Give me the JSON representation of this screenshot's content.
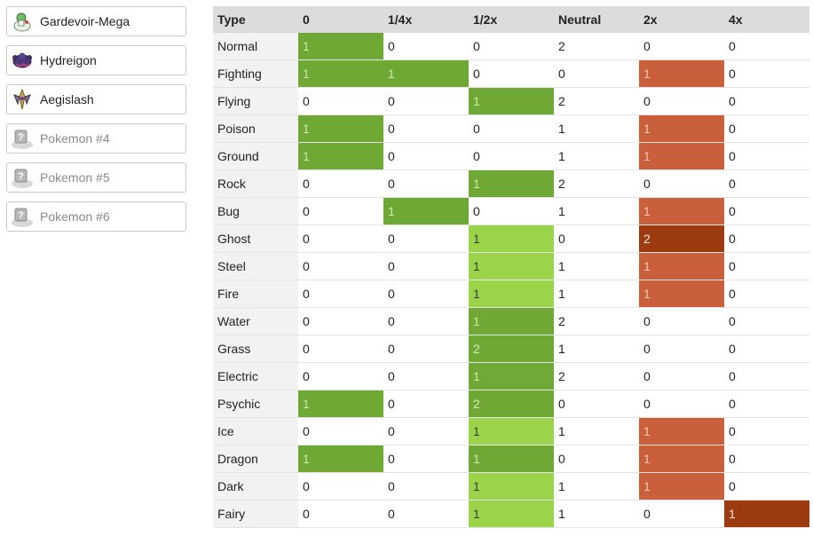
{
  "team": {
    "slots": [
      {
        "name": "Gardevoir-Mega",
        "sprite": "gardevoir-mega-sprite",
        "empty": false
      },
      {
        "name": "Hydreigon",
        "sprite": "hydreigon-sprite",
        "empty": false
      },
      {
        "name": "Aegislash",
        "sprite": "aegislash-sprite",
        "empty": false
      },
      {
        "name": "Pokemon #4",
        "sprite": "pokeball-placeholder-icon",
        "empty": true
      },
      {
        "name": "Pokemon #5",
        "sprite": "pokeball-placeholder-icon",
        "empty": true
      },
      {
        "name": "Pokemon #6",
        "sprite": "pokeball-placeholder-icon",
        "empty": true
      }
    ]
  },
  "table": {
    "headers": [
      "Type",
      "0",
      "1/4x",
      "1/2x",
      "Neutral",
      "2x",
      "4x"
    ],
    "rows": [
      {
        "type": "Normal",
        "cells": [
          "1",
          "0",
          "0",
          "2",
          "0",
          "0"
        ]
      },
      {
        "type": "Fighting",
        "cells": [
          "1",
          "1",
          "0",
          "0",
          "1",
          "0"
        ]
      },
      {
        "type": "Flying",
        "cells": [
          "0",
          "0",
          "1",
          "2",
          "0",
          "0"
        ]
      },
      {
        "type": "Poison",
        "cells": [
          "1",
          "0",
          "0",
          "1",
          "1",
          "0"
        ]
      },
      {
        "type": "Ground",
        "cells": [
          "1",
          "0",
          "0",
          "1",
          "1",
          "0"
        ]
      },
      {
        "type": "Rock",
        "cells": [
          "0",
          "0",
          "1",
          "2",
          "0",
          "0"
        ]
      },
      {
        "type": "Bug",
        "cells": [
          "0",
          "1",
          "0",
          "1",
          "1",
          "0"
        ]
      },
      {
        "type": "Ghost",
        "cells": [
          "0",
          "0",
          "1",
          "0",
          "2",
          "0"
        ]
      },
      {
        "type": "Steel",
        "cells": [
          "0",
          "0",
          "1",
          "1",
          "1",
          "0"
        ]
      },
      {
        "type": "Fire",
        "cells": [
          "0",
          "0",
          "1",
          "1",
          "1",
          "0"
        ]
      },
      {
        "type": "Water",
        "cells": [
          "0",
          "0",
          "1",
          "2",
          "0",
          "0"
        ]
      },
      {
        "type": "Grass",
        "cells": [
          "0",
          "0",
          "2",
          "1",
          "0",
          "0"
        ]
      },
      {
        "type": "Electric",
        "cells": [
          "0",
          "0",
          "1",
          "2",
          "0",
          "0"
        ]
      },
      {
        "type": "Psychic",
        "cells": [
          "1",
          "0",
          "2",
          "0",
          "0",
          "0"
        ]
      },
      {
        "type": "Ice",
        "cells": [
          "0",
          "0",
          "1",
          "1",
          "1",
          "0"
        ]
      },
      {
        "type": "Dragon",
        "cells": [
          "1",
          "0",
          "1",
          "0",
          "1",
          "0"
        ]
      },
      {
        "type": "Dark",
        "cells": [
          "0",
          "0",
          "1",
          "1",
          "1",
          "0"
        ]
      },
      {
        "type": "Fairy",
        "cells": [
          "0",
          "0",
          "1",
          "1",
          "0",
          "1"
        ]
      }
    ]
  },
  "colors": {
    "resist_strong": "#6fa835",
    "resist_light": "#9bd44a",
    "weak": "#c9603b",
    "weak_strong": "#9c3a10",
    "header_bg": "#dcdcdc",
    "type_col_bg": "#f2f2f2"
  },
  "cell_styles": [
    [
      "res-strong",
      "",
      "",
      "",
      "",
      ""
    ],
    [
      "res-strong",
      "res-strong",
      "",
      "",
      "weak",
      ""
    ],
    [
      "",
      "",
      "res-strong",
      "",
      "",
      ""
    ],
    [
      "res-strong",
      "",
      "",
      "",
      "weak",
      ""
    ],
    [
      "res-strong",
      "",
      "",
      "",
      "weak",
      ""
    ],
    [
      "",
      "",
      "res-strong",
      "",
      "",
      ""
    ],
    [
      "",
      "res-strong",
      "",
      "",
      "weak",
      ""
    ],
    [
      "",
      "",
      "res-light",
      "",
      "weak-strong",
      ""
    ],
    [
      "",
      "",
      "res-light",
      "",
      "weak",
      ""
    ],
    [
      "",
      "",
      "res-light",
      "",
      "weak",
      ""
    ],
    [
      "",
      "",
      "res-strong",
      "",
      "",
      ""
    ],
    [
      "",
      "",
      "res-strong",
      "",
      "",
      ""
    ],
    [
      "",
      "",
      "res-strong",
      "",
      "",
      ""
    ],
    [
      "res-strong",
      "",
      "res-strong",
      "",
      "",
      ""
    ],
    [
      "",
      "",
      "res-light",
      "",
      "weak",
      ""
    ],
    [
      "res-strong",
      "",
      "res-strong",
      "",
      "weak",
      ""
    ],
    [
      "",
      "",
      "res-light",
      "",
      "weak",
      ""
    ],
    [
      "",
      "",
      "res-light",
      "",
      "",
      "weak-strong"
    ]
  ]
}
